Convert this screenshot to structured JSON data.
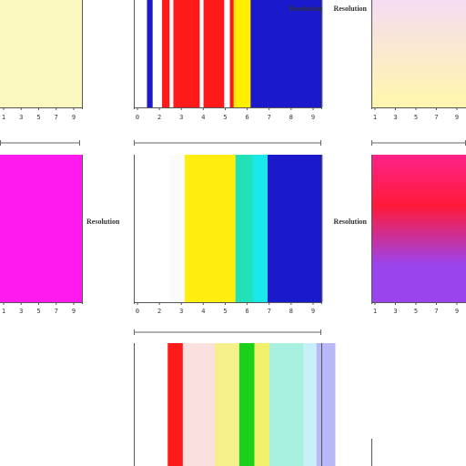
{
  "chart_data": [
    {
      "type": "heatmap",
      "panel": "top-left",
      "label": "",
      "label_position": "right",
      "xticks": [
        "1",
        "3",
        "5",
        "7",
        "9"
      ],
      "colors": [
        "#fbf8c0"
      ],
      "fractions": [
        1
      ]
    },
    {
      "type": "bar",
      "panel": "top-center",
      "label": "Resolution",
      "label_position": "left",
      "xticks": [
        "0",
        "2",
        "3",
        "4",
        "5",
        "6",
        "7",
        "8",
        "9"
      ],
      "stripe_colors": [
        "#ffffff",
        "#1a1acc",
        "#ffffff",
        "#ff1a1a",
        "#ffffff",
        "#ff1a1a",
        "#ff1a1a",
        "#ffffff",
        "#ff1a1a",
        "#ff1a1a",
        "#ffffff",
        "#ff1a1a",
        "#ffee00",
        "#1a1acc"
      ],
      "stripe_fractions": [
        0.07,
        0.03,
        0.05,
        0.04,
        0.02,
        0.06,
        0.08,
        0.02,
        0.05,
        0.06,
        0.03,
        0.02,
        0.09,
        0.38
      ]
    },
    {
      "type": "heatmap",
      "panel": "top-right",
      "label": "Resolution",
      "label_position": "left",
      "xticks": [
        "1",
        "3",
        "5",
        "7",
        "9"
      ],
      "colors": [
        "#f5dcf2",
        "#fff5b0"
      ],
      "fractions": [
        0.92,
        0.08
      ]
    },
    {
      "type": "heatmap",
      "panel": "middle-left",
      "label": "Resolution",
      "label_position": "right",
      "xticks": [
        "1",
        "3",
        "5",
        "7",
        "9"
      ],
      "colors": [
        "#ff1aee"
      ],
      "fractions": [
        1
      ]
    },
    {
      "type": "bar",
      "panel": "center",
      "label": "",
      "label_position": "",
      "xticks": [
        "0",
        "2",
        "3",
        "4",
        "5",
        "6",
        "7",
        "8",
        "9"
      ],
      "stripe_colors": [
        "#ffffff",
        "#fbfbfb",
        "#ffee10",
        "#22e0b8",
        "#1ae8e8",
        "#1a1acc"
      ],
      "stripe_fractions": [
        0.19,
        0.08,
        0.27,
        0.09,
        0.08,
        0.29
      ]
    },
    {
      "type": "heatmap",
      "panel": "middle-right",
      "label": "Resolution",
      "label_position": "left",
      "xticks": [
        "1",
        "3",
        "5",
        "7",
        "9"
      ],
      "colors": [
        "#ff2288",
        "#ff1a3a",
        "#9a44ee"
      ],
      "fractions": [
        0.35,
        0.4,
        0.25
      ]
    },
    {
      "type": "bar",
      "panel": "bottom-center",
      "label": "",
      "label_position": "",
      "xticks": [],
      "stripe_colors": [
        "#ffffff",
        "#ff1a1a",
        "#fbe0e0",
        "#f6f08a",
        "#1ad01a",
        "#f0f06a",
        "#a8f0e0",
        "#c8f0f8",
        "#b8b8f8",
        "#ffffff"
      ],
      "stripe_fractions": [
        0.18,
        0.08,
        0.17,
        0.13,
        0.08,
        0.08,
        0.18,
        0.07,
        0.1,
        0.03
      ]
    }
  ]
}
